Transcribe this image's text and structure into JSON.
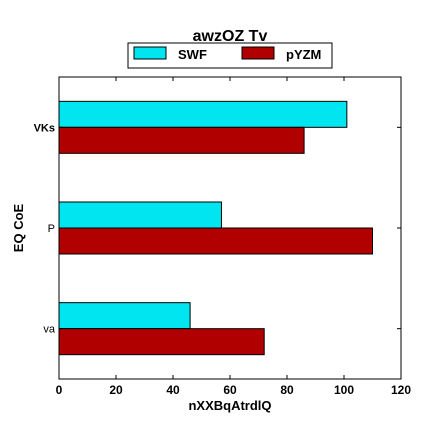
{
  "chart_data": {
    "type": "bar",
    "orientation": "horizontal",
    "title": "awzOZ Tv",
    "xlabel": "nXXBqAtrdlQ",
    "ylabel": "EQ CoE",
    "categories": [
      "VKs",
      "P",
      "va"
    ],
    "bold_categories": [
      "VKs"
    ],
    "series": [
      {
        "name": "SWF",
        "color": "#00e5ef",
        "values": [
          101,
          57,
          46
        ]
      },
      {
        "name": "pYZM",
        "color": "#b00000",
        "values": [
          86,
          110,
          72
        ]
      }
    ],
    "xlim": [
      0,
      120
    ],
    "xticks": [
      0,
      20,
      40,
      60,
      80,
      100,
      120
    ],
    "grid": false,
    "legend": {
      "placement": "top-center",
      "columns": 2
    }
  }
}
